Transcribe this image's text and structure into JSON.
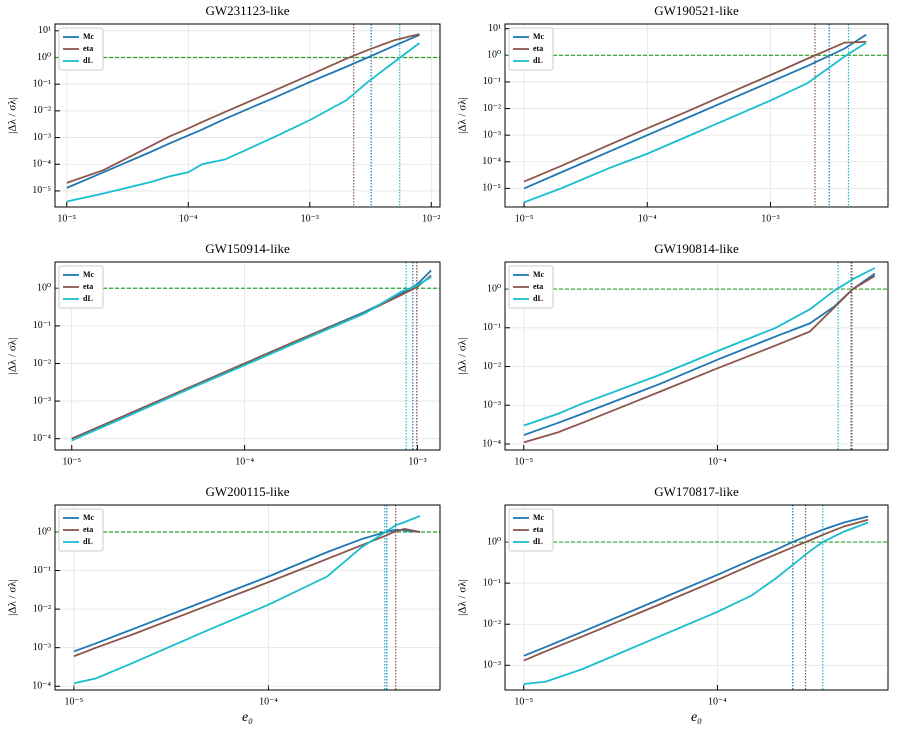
{
  "chart_data": [
    {
      "type": "line",
      "title": "GW231123-like",
      "ylabel": "|Δλ / σλ|",
      "xscale": "log",
      "yscale": "log",
      "grid": true,
      "legend": "upper left",
      "xlim": [
        8e-06,
        0.0118
      ],
      "ylim": [
        2.5e-06,
        18
      ],
      "xticks": [
        {
          "value": 1e-05,
          "label": "10⁻⁵"
        },
        {
          "value": 0.0001,
          "label": "10⁻⁴"
        },
        {
          "value": 0.001,
          "label": "10⁻³"
        },
        {
          "value": 0.01,
          "label": "10⁻²"
        }
      ],
      "yticks": [
        {
          "value": 1e-05,
          "label": "10⁻⁵"
        },
        {
          "value": 0.0001,
          "label": "10⁻⁴"
        },
        {
          "value": 0.001,
          "label": "10⁻³"
        },
        {
          "value": 0.01,
          "label": "10⁻²"
        },
        {
          "value": 0.1,
          "label": "10⁻¹"
        },
        {
          "value": 1,
          "label": "10⁰"
        },
        {
          "value": 10,
          "label": "10¹"
        }
      ],
      "x": [
        1e-05,
        2e-05,
        5e-05,
        7e-05,
        0.0001,
        0.00013,
        0.0002,
        0.0005,
        0.001,
        0.002,
        0.003,
        0.005,
        0.008
      ],
      "series": [
        {
          "name": "Mc",
          "color": "#1f77b4",
          "values": [
            1.3e-05,
            5e-05,
            0.0003,
            0.0006,
            0.0012,
            0.002,
            0.005,
            0.03,
            0.12,
            0.45,
            1,
            2.8,
            7
          ]
        },
        {
          "name": "eta",
          "color": "#8c564b",
          "values": [
            2e-05,
            6e-05,
            0.0005,
            0.0011,
            0.0022,
            0.0038,
            0.009,
            0.055,
            0.22,
            0.9,
            1.9,
            4.5,
            7.5
          ]
        },
        {
          "name": "dL",
          "color": "#17becf",
          "values": [
            4e-06,
            8e-06,
            2.2e-05,
            3.5e-05,
            5e-05,
            0.0001,
            0.00015,
            0.001,
            0.0045,
            0.025,
            0.12,
            0.7,
            3.5
          ]
        }
      ],
      "hline": {
        "value": 1,
        "color": "#2ca02c"
      },
      "vlines": [
        {
          "x": 0.0023,
          "color": "#8c564b"
        },
        {
          "x": 0.0032,
          "color": "#1f77b4"
        },
        {
          "x": 0.0055,
          "color": "#17becf"
        }
      ]
    },
    {
      "type": "line",
      "title": "GW190521-like",
      "ylabel": "|Δλ / σλ|",
      "xscale": "log",
      "yscale": "log",
      "grid": true,
      "legend": "upper left",
      "xlim": [
        7e-06,
        0.009
      ],
      "ylim": [
        2e-06,
        15
      ],
      "xticks": [
        {
          "value": 1e-05,
          "label": "10⁻⁵"
        },
        {
          "value": 0.0001,
          "label": "10⁻⁴"
        },
        {
          "value": 0.001,
          "label": "10⁻³"
        }
      ],
      "yticks": [
        {
          "value": 1e-05,
          "label": "10⁻⁵"
        },
        {
          "value": 0.0001,
          "label": "10⁻⁴"
        },
        {
          "value": 0.001,
          "label": "10⁻³"
        },
        {
          "value": 0.01,
          "label": "10⁻²"
        },
        {
          "value": 0.1,
          "label": "10⁻¹"
        },
        {
          "value": 1,
          "label": "10⁰"
        },
        {
          "value": 10,
          "label": "10¹"
        }
      ],
      "x": [
        1e-05,
        2e-05,
        5e-05,
        0.0001,
        0.0002,
        0.0005,
        0.001,
        0.002,
        0.004,
        0.006
      ],
      "series": [
        {
          "name": "Mc",
          "color": "#1f77b4",
          "values": [
            1e-05,
            4e-05,
            0.00025,
            0.001,
            0.004,
            0.025,
            0.1,
            0.4,
            1.8,
            6
          ]
        },
        {
          "name": "eta",
          "color": "#8c564b",
          "values": [
            1.8e-05,
            7e-05,
            0.00045,
            0.0018,
            0.007,
            0.045,
            0.18,
            0.75,
            3,
            3.2
          ]
        },
        {
          "name": "dL",
          "color": "#17becf",
          "values": [
            3e-06,
            1e-05,
            6e-05,
            0.0002,
            0.0008,
            0.005,
            0.02,
            0.09,
            0.9,
            3
          ]
        }
      ],
      "hline": {
        "value": 1,
        "color": "#2ca02c"
      },
      "vlines": [
        {
          "x": 0.0023,
          "color": "#8c564b"
        },
        {
          "x": 0.003,
          "color": "#1f77b4"
        },
        {
          "x": 0.0043,
          "color": "#17becf"
        }
      ]
    },
    {
      "type": "line",
      "title": "GW150914-like",
      "ylabel": "|Δλ / σλ|",
      "xscale": "log",
      "yscale": "log",
      "grid": true,
      "legend": "upper left",
      "xlim": [
        8e-06,
        0.00135
      ],
      "ylim": [
        5e-05,
        5
      ],
      "xticks": [
        {
          "value": 1e-05,
          "label": "10⁻⁵"
        },
        {
          "value": 0.0001,
          "label": "10⁻⁴"
        },
        {
          "value": 0.001,
          "label": "10⁻³"
        }
      ],
      "yticks": [
        {
          "value": 0.0001,
          "label": "10⁻⁴"
        },
        {
          "value": 0.001,
          "label": "10⁻³"
        },
        {
          "value": 0.01,
          "label": "10⁻²"
        },
        {
          "value": 0.1,
          "label": "10⁻¹"
        },
        {
          "value": 1,
          "label": "10⁰"
        }
      ],
      "x": [
        1e-05,
        2e-05,
        5e-05,
        0.0001,
        0.0002,
        0.0005,
        0.0008,
        0.001,
        0.0012
      ],
      "series": [
        {
          "name": "Mc",
          "color": "#1f77b4",
          "values": [
            0.0001,
            0.0004,
            0.0025,
            0.01,
            0.04,
            0.24,
            0.7,
            1.3,
            3
          ]
        },
        {
          "name": "eta",
          "color": "#8c564b",
          "values": [
            0.0001,
            0.0004,
            0.0025,
            0.01,
            0.04,
            0.23,
            0.65,
            1.1,
            2.2
          ]
        },
        {
          "name": "dL",
          "color": "#17becf",
          "values": [
            9e-05,
            0.00036,
            0.0023,
            0.009,
            0.036,
            0.22,
            0.8,
            1.2,
            2
          ]
        }
      ],
      "hline": {
        "value": 1,
        "color": "#2ca02c"
      },
      "vlines": [
        {
          "x": 0.00086,
          "color": "#17becf"
        },
        {
          "x": 0.00094,
          "color": "#1f77b4"
        },
        {
          "x": 0.00099,
          "color": "#8c564b"
        }
      ]
    },
    {
      "type": "line",
      "title": "GW190814-like",
      "ylabel": "|Δλ / σλ|",
      "xscale": "log",
      "yscale": "log",
      "grid": true,
      "legend": "upper left",
      "xlim": [
        8e-06,
        0.00076
      ],
      "ylim": [
        7e-05,
        5
      ],
      "xticks": [
        {
          "value": 1e-05,
          "label": "10⁻⁵"
        },
        {
          "value": 0.0001,
          "label": "10⁻⁴"
        }
      ],
      "yticks": [
        {
          "value": 0.0001,
          "label": "10⁻⁴"
        },
        {
          "value": 0.001,
          "label": "10⁻³"
        },
        {
          "value": 0.01,
          "label": "10⁻²"
        },
        {
          "value": 0.1,
          "label": "10⁻¹"
        },
        {
          "value": 1,
          "label": "10⁰"
        }
      ],
      "x": [
        1e-05,
        1.5e-05,
        2e-05,
        5e-05,
        0.0001,
        0.0002,
        0.0003,
        0.0004,
        0.0005,
        0.00065
      ],
      "series": [
        {
          "name": "Mc",
          "color": "#1f77b4",
          "values": [
            0.00017,
            0.00035,
            0.0006,
            0.0035,
            0.015,
            0.06,
            0.13,
            0.35,
            1,
            2.5
          ]
        },
        {
          "name": "eta",
          "color": "#8c564b",
          "values": [
            0.00011,
            0.0002,
            0.00035,
            0.0022,
            0.009,
            0.035,
            0.08,
            0.33,
            1,
            2.2
          ]
        },
        {
          "name": "dL",
          "color": "#17becf",
          "values": [
            0.0003,
            0.0006,
            0.0011,
            0.006,
            0.025,
            0.1,
            0.3,
            0.9,
            1.8,
            3.5
          ]
        }
      ],
      "hline": {
        "value": 1,
        "color": "#2ca02c"
      },
      "vlines": [
        {
          "x": 0.00042,
          "color": "#17becf"
        },
        {
          "x": 0.00049,
          "color": "#1f77b4"
        },
        {
          "x": 0.000495,
          "color": "#8c564b"
        }
      ]
    },
    {
      "type": "line",
      "title": "GW200115-like",
      "ylabel": "|Δλ / σλ|",
      "xlabel": "e₀",
      "xscale": "log",
      "yscale": "log",
      "grid": true,
      "legend": "upper left",
      "xlim": [
        8e-06,
        0.00076
      ],
      "ylim": [
        8e-05,
        5
      ],
      "xticks": [
        {
          "value": 1e-05,
          "label": "10⁻⁵"
        },
        {
          "value": 0.0001,
          "label": "10⁻⁴"
        }
      ],
      "yticks": [
        {
          "value": 0.0001,
          "label": "10⁻⁴"
        },
        {
          "value": 0.001,
          "label": "10⁻³"
        },
        {
          "value": 0.01,
          "label": "10⁻²"
        },
        {
          "value": 0.1,
          "label": "10⁻¹"
        },
        {
          "value": 1,
          "label": "10⁰"
        }
      ],
      "x": [
        1e-05,
        1.3e-05,
        2e-05,
        5e-05,
        0.0001,
        0.0002,
        0.0003,
        0.0004,
        0.00045,
        0.0005,
        0.0006
      ],
      "series": [
        {
          "name": "Mc",
          "color": "#1f77b4",
          "values": [
            0.0008,
            0.0013,
            0.003,
            0.018,
            0.07,
            0.3,
            0.65,
            1,
            1.15,
            1.1,
            1
          ]
        },
        {
          "name": "eta",
          "color": "#8c564b",
          "values": [
            0.0006,
            0.001,
            0.0022,
            0.013,
            0.05,
            0.2,
            0.45,
            0.8,
            1.05,
            1.2,
            1
          ]
        },
        {
          "name": "dL",
          "color": "#17becf",
          "values": [
            0.00012,
            0.00016,
            0.0004,
            0.003,
            0.013,
            0.07,
            0.4,
            1,
            1.5,
            1.8,
            2.6
          ]
        }
      ],
      "hline": {
        "value": 1,
        "color": "#2ca02c"
      },
      "vlines": [
        {
          "x": 0.000395,
          "color": "#17becf"
        },
        {
          "x": 0.000405,
          "color": "#1f77b4"
        },
        {
          "x": 0.00045,
          "color": "#8c564b"
        }
      ]
    },
    {
      "type": "line",
      "title": "GW170817-like",
      "ylabel": "|Δλ / σλ|",
      "xlabel": "e₀",
      "xscale": "log",
      "yscale": "log",
      "grid": true,
      "legend": "upper left",
      "xlim": [
        8e-06,
        0.00076
      ],
      "ylim": [
        0.00025,
        8
      ],
      "xticks": [
        {
          "value": 1e-05,
          "label": "10⁻⁵"
        },
        {
          "value": 0.0001,
          "label": "10⁻⁴"
        }
      ],
      "yticks": [
        {
          "value": 0.001,
          "label": "10⁻³"
        },
        {
          "value": 0.01,
          "label": "10⁻²"
        },
        {
          "value": 0.1,
          "label": "10⁻¹"
        },
        {
          "value": 1,
          "label": "10⁰"
        }
      ],
      "x": [
        1e-05,
        1.3e-05,
        2e-05,
        5e-05,
        0.0001,
        0.00015,
        0.0002,
        0.00025,
        0.0003,
        0.00035,
        0.00045,
        0.0006
      ],
      "series": [
        {
          "name": "Mc",
          "color": "#1f77b4",
          "values": [
            0.0017,
            0.0028,
            0.0065,
            0.04,
            0.16,
            0.37,
            0.65,
            1.05,
            1.5,
            2,
            3,
            4.2
          ]
        },
        {
          "name": "eta",
          "color": "#8c564b",
          "values": [
            0.0013,
            0.0022,
            0.005,
            0.03,
            0.12,
            0.28,
            0.5,
            0.78,
            1.1,
            1.5,
            2.4,
            3.5
          ]
        },
        {
          "name": "dL",
          "color": "#17becf",
          "values": [
            0.00035,
            0.0004,
            0.0008,
            0.005,
            0.02,
            0.05,
            0.13,
            0.3,
            0.6,
            1,
            1.8,
            3
          ]
        }
      ],
      "hline": {
        "value": 1,
        "color": "#2ca02c"
      },
      "vlines": [
        {
          "x": 0.000245,
          "color": "#1f77b4"
        },
        {
          "x": 0.000285,
          "color": "#8c564b"
        },
        {
          "x": 0.00035,
          "color": "#17becf"
        }
      ]
    }
  ]
}
